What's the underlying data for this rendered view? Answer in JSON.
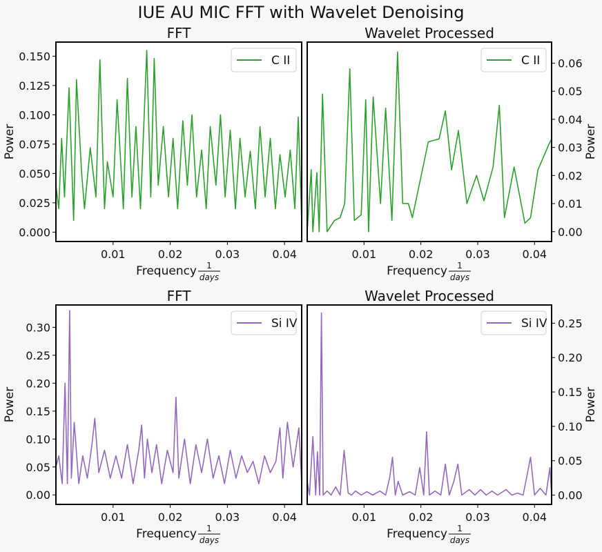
{
  "title": "IUE AU MIC FFT with Wavelet Denoising",
  "colors": {
    "c2": "#2ca02c",
    "si4": "#9467bd",
    "background": "#f7f7f7"
  },
  "chart_data": [
    {
      "type": "line",
      "title": "FFT",
      "xlabel": "Frequency",
      "xlabel_frac": [
        "1",
        "days"
      ],
      "ylabel": "Power",
      "xlim": [
        0.0,
        0.043
      ],
      "ylim": [
        -0.008,
        0.162
      ],
      "xticks": [
        0.01,
        0.02,
        0.03,
        0.04
      ],
      "xtick_labels": [
        "0.01",
        "0.02",
        "0.03",
        "0.04"
      ],
      "yticks": [
        0.0,
        0.025,
        0.05,
        0.075,
        0.1,
        0.125,
        0.15
      ],
      "ytick_labels": [
        "0.000",
        "0.025",
        "0.050",
        "0.075",
        "0.100",
        "0.125",
        "0.150"
      ],
      "ytick_side": "left",
      "legend_position": "top-right",
      "color_key": "c2",
      "series": [
        {
          "name": "C II",
          "x": [
            0.0,
            0.0005,
            0.001,
            0.0015,
            0.0023,
            0.0031,
            0.0036,
            0.0045,
            0.005,
            0.006,
            0.007,
            0.0077,
            0.0085,
            0.009,
            0.01,
            0.0107,
            0.0118,
            0.0125,
            0.0133,
            0.014,
            0.0148,
            0.0159,
            0.0166,
            0.0172,
            0.0179,
            0.0188,
            0.0197,
            0.0205,
            0.0213,
            0.0222,
            0.023,
            0.0238,
            0.0246,
            0.0255,
            0.0263,
            0.027,
            0.028,
            0.0288,
            0.0296,
            0.0305,
            0.0314,
            0.0322,
            0.0331,
            0.034,
            0.0349,
            0.0357,
            0.0366,
            0.0375,
            0.0384,
            0.0392,
            0.0401,
            0.041,
            0.0418,
            0.0424,
            0.043
          ],
          "values": [
            0.04,
            0.02,
            0.08,
            0.03,
            0.123,
            0.01,
            0.13,
            0.05,
            0.02,
            0.072,
            0.03,
            0.147,
            0.02,
            0.06,
            0.03,
            0.113,
            0.02,
            0.131,
            0.03,
            0.09,
            0.02,
            0.155,
            0.03,
            0.148,
            0.04,
            0.09,
            0.03,
            0.08,
            0.02,
            0.095,
            0.04,
            0.1,
            0.03,
            0.07,
            0.02,
            0.09,
            0.04,
            0.1,
            0.03,
            0.087,
            0.02,
            0.08,
            0.03,
            0.069,
            0.02,
            0.09,
            0.03,
            0.08,
            0.02,
            0.066,
            0.03,
            0.07,
            0.02,
            0.098,
            0.01
          ]
        }
      ]
    },
    {
      "type": "line",
      "title": "Wavelet Processed",
      "xlabel": "Frequency",
      "xlabel_frac": [
        "1",
        "days"
      ],
      "ylabel": "Power",
      "xlim": [
        0.0,
        0.043
      ],
      "ylim": [
        -0.0035,
        0.0675
      ],
      "xticks": [
        0.01,
        0.02,
        0.03,
        0.04
      ],
      "xtick_labels": [
        "0.01",
        "0.02",
        "0.03",
        "0.04"
      ],
      "yticks": [
        0.0,
        0.01,
        0.02,
        0.03,
        0.04,
        0.05,
        0.06
      ],
      "ytick_labels": [
        "0.00",
        "0.01",
        "0.02",
        "0.03",
        "0.04",
        "0.05",
        "0.06"
      ],
      "ytick_side": "right",
      "legend_position": "top-right",
      "color_key": "c2",
      "series": [
        {
          "name": "C II",
          "x": [
            0.0,
            0.0007,
            0.001,
            0.0017,
            0.0021,
            0.0027,
            0.0035,
            0.0048,
            0.0058,
            0.0066,
            0.0075,
            0.0083,
            0.0095,
            0.0103,
            0.0108,
            0.0116,
            0.0129,
            0.0138,
            0.0149,
            0.0159,
            0.0168,
            0.0178,
            0.0185,
            0.0213,
            0.0232,
            0.0243,
            0.0254,
            0.0266,
            0.0281,
            0.0291,
            0.0298,
            0.0311,
            0.0327,
            0.0338,
            0.0347,
            0.0364,
            0.0383,
            0.0393,
            0.0406,
            0.0425,
            0.043
          ],
          "values": [
            0.0,
            0.022,
            0.0,
            0.021,
            0.0,
            0.049,
            0.0,
            0.004,
            0.005,
            0.01,
            0.058,
            0.004,
            0.006,
            0.047,
            0.0,
            0.048,
            0.01,
            0.044,
            0.004,
            0.064,
            0.01,
            0.01,
            0.005,
            0.032,
            0.033,
            0.043,
            0.022,
            0.036,
            0.01,
            0.016,
            0.02,
            0.011,
            0.023,
            0.045,
            0.005,
            0.023,
            0.003,
            0.005,
            0.022,
            0.031,
            0.033
          ]
        }
      ]
    },
    {
      "type": "line",
      "title": "FFT",
      "xlabel": "Frequency",
      "xlabel_frac": [
        "1",
        "days"
      ],
      "ylabel": "Power",
      "xlim": [
        0.0,
        0.043
      ],
      "ylim": [
        -0.017,
        0.34
      ],
      "xticks": [
        0.01,
        0.02,
        0.03,
        0.04
      ],
      "xtick_labels": [
        "0.01",
        "0.02",
        "0.03",
        "0.04"
      ],
      "yticks": [
        0.0,
        0.05,
        0.1,
        0.15,
        0.2,
        0.25,
        0.3
      ],
      "ytick_labels": [
        "0.00",
        "0.05",
        "0.10",
        "0.15",
        "0.20",
        "0.25",
        "0.30"
      ],
      "ytick_side": "left",
      "legend_position": "top-right",
      "color_key": "si4",
      "series": [
        {
          "name": "Si IV",
          "x": [
            0.0,
            0.0005,
            0.0011,
            0.0016,
            0.002,
            0.0024,
            0.0027,
            0.0032,
            0.004,
            0.0047,
            0.0055,
            0.0063,
            0.0068,
            0.0075,
            0.0085,
            0.0095,
            0.0105,
            0.0115,
            0.0125,
            0.0135,
            0.0145,
            0.015,
            0.0155,
            0.016,
            0.0168,
            0.0176,
            0.0185,
            0.0195,
            0.0205,
            0.021,
            0.0215,
            0.0225,
            0.0235,
            0.0245,
            0.0255,
            0.0265,
            0.0275,
            0.0285,
            0.0295,
            0.0305,
            0.0315,
            0.0325,
            0.0335,
            0.0345,
            0.0355,
            0.0365,
            0.0375,
            0.0385,
            0.0392,
            0.0397,
            0.0405,
            0.0415,
            0.0425,
            0.043
          ],
          "values": [
            0.05,
            0.07,
            0.02,
            0.2,
            0.02,
            0.33,
            0.03,
            0.13,
            0.02,
            0.07,
            0.03,
            0.09,
            0.137,
            0.04,
            0.08,
            0.03,
            0.07,
            0.03,
            0.09,
            0.02,
            0.08,
            0.125,
            0.03,
            0.1,
            0.04,
            0.09,
            0.02,
            0.08,
            0.04,
            0.175,
            0.03,
            0.1,
            0.02,
            0.09,
            0.04,
            0.1,
            0.03,
            0.07,
            0.02,
            0.08,
            0.03,
            0.07,
            0.04,
            0.06,
            0.02,
            0.07,
            0.04,
            0.06,
            0.12,
            0.03,
            0.13,
            0.05,
            0.12,
            0.02
          ]
        }
      ]
    },
    {
      "type": "line",
      "title": "Wavelet Processed",
      "xlabel": "Frequency",
      "xlabel_frac": [
        "1",
        "days"
      ],
      "ylabel": "Power",
      "xlim": [
        0.0,
        0.043
      ],
      "ylim": [
        -0.0135,
        0.2765
      ],
      "xticks": [
        0.01,
        0.02,
        0.03,
        0.04
      ],
      "xtick_labels": [
        "0.01",
        "0.02",
        "0.03",
        "0.04"
      ],
      "yticks": [
        0.0,
        0.05,
        0.1,
        0.15,
        0.2,
        0.25
      ],
      "ytick_labels": [
        "0.00",
        "0.05",
        "0.10",
        "0.15",
        "0.20",
        "0.25"
      ],
      "ytick_side": "right",
      "legend_position": "top-right",
      "color_key": "si4",
      "series": [
        {
          "name": "Si IV",
          "x": [
            0.0,
            0.0004,
            0.001,
            0.0015,
            0.0018,
            0.0022,
            0.0025,
            0.0028,
            0.0035,
            0.0042,
            0.005,
            0.0058,
            0.0065,
            0.0072,
            0.0078,
            0.0085,
            0.0095,
            0.0105,
            0.0115,
            0.0128,
            0.0138,
            0.0145,
            0.015,
            0.0155,
            0.016,
            0.0168,
            0.018,
            0.019,
            0.0198,
            0.0205,
            0.021,
            0.0215,
            0.0225,
            0.0235,
            0.0243,
            0.025,
            0.0258,
            0.0265,
            0.0272,
            0.0285,
            0.0295,
            0.0305,
            0.0315,
            0.0325,
            0.0335,
            0.035,
            0.036,
            0.037,
            0.038,
            0.0393,
            0.04,
            0.041,
            0.042,
            0.0427,
            0.043
          ],
          "values": [
            0.02,
            0.0,
            0.085,
            0.0,
            0.063,
            0.0,
            0.265,
            0.0,
            0.006,
            0.0,
            0.012,
            0.0,
            0.065,
            0.003,
            0.0,
            0.006,
            0.0,
            0.005,
            0.0,
            0.006,
            0.0,
            0.025,
            0.055,
            0.0,
            0.02,
            0.0,
            0.005,
            0.0,
            0.04,
            0.0,
            0.092,
            0.0,
            0.006,
            0.0,
            0.045,
            0.0,
            0.02,
            0.045,
            0.0,
            0.008,
            0.0,
            0.008,
            0.0,
            0.006,
            0.0,
            0.008,
            0.0,
            0.003,
            0.0,
            0.055,
            0.0,
            0.01,
            0.0,
            0.04,
            0.0
          ]
        }
      ]
    }
  ]
}
